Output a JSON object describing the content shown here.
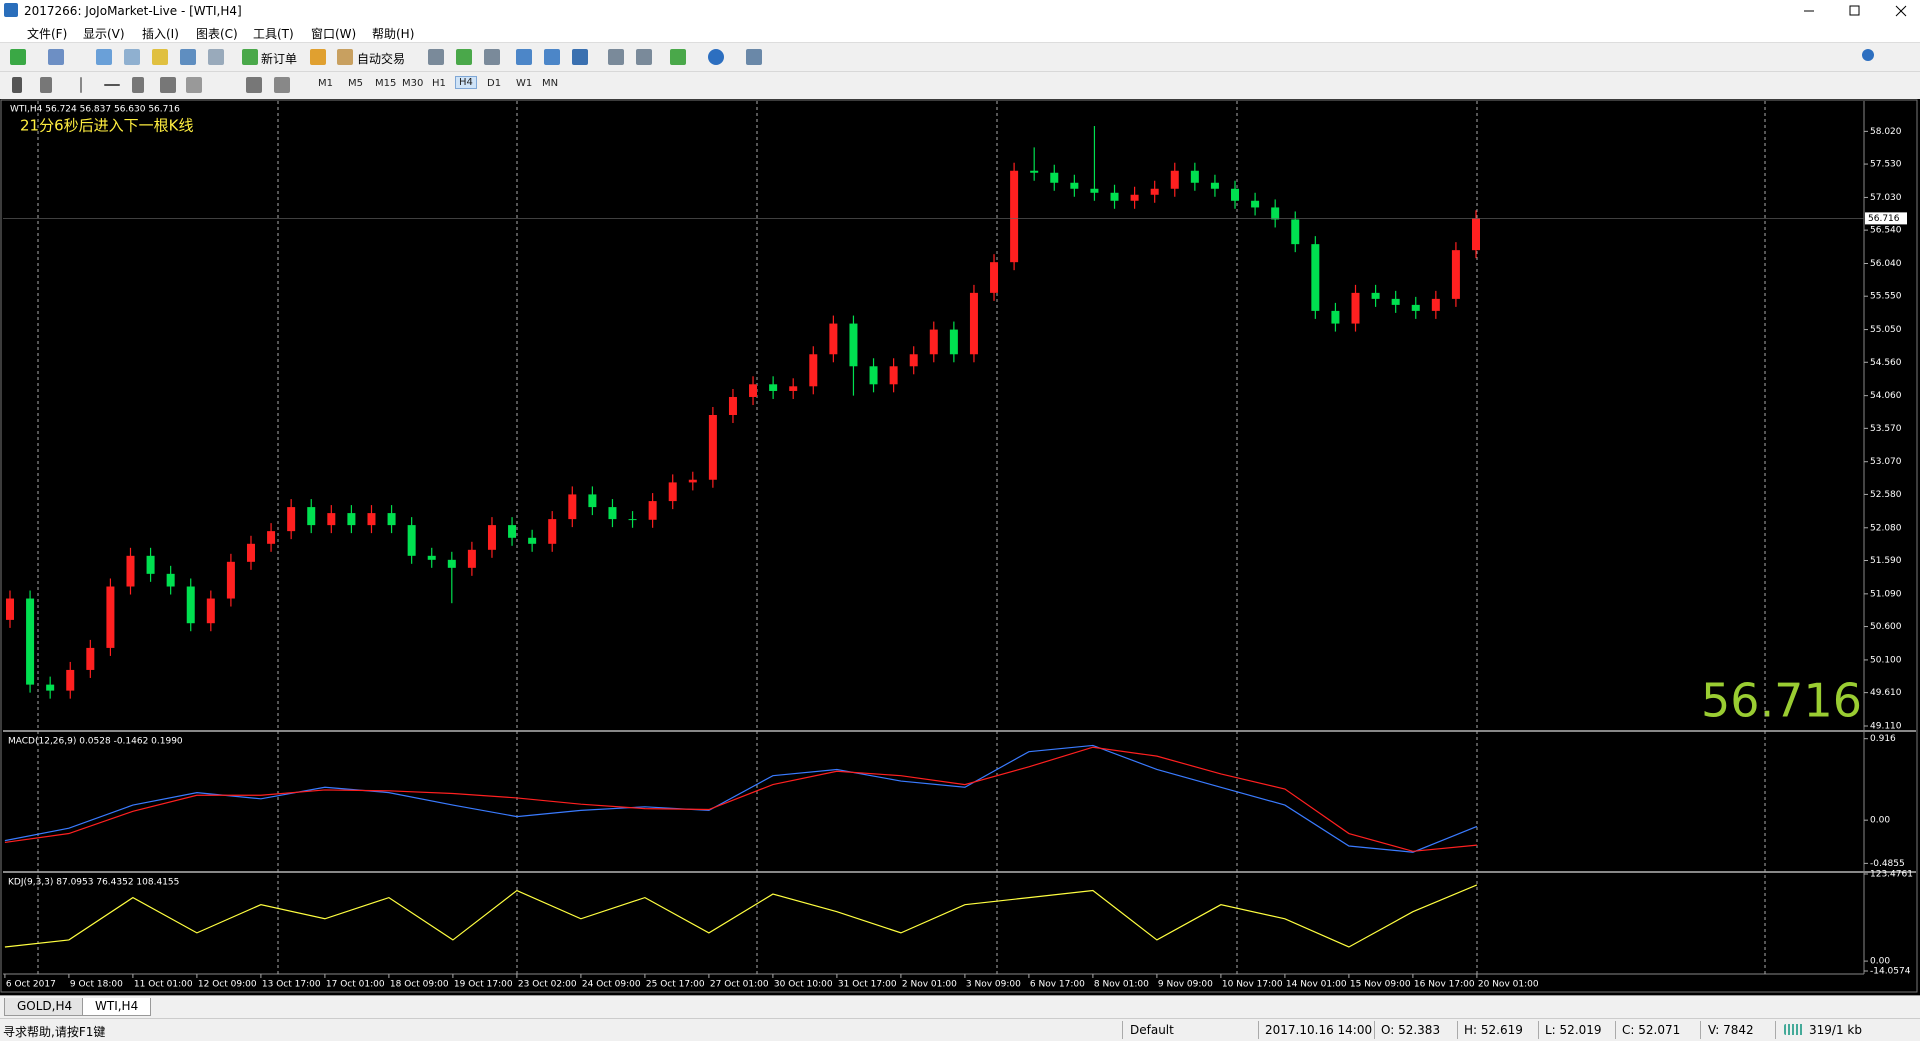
{
  "window": {
    "title": "2017266: JoJoMarket-Live - [WTI,H4]"
  },
  "menu": [
    "文件(F)",
    "显示(V)",
    "插入(I)",
    "图表(C)",
    "工具(T)",
    "窗口(W)",
    "帮助(H)"
  ],
  "toolbar": {
    "new_order": "新订单",
    "auto_trading": "自动交易",
    "timeframes": [
      "M1",
      "M5",
      "M15",
      "M30",
      "H1",
      "H4",
      "D1",
      "W1",
      "MN"
    ]
  },
  "chart": {
    "header": "WTI,H4  56.724 56.837 56.630 56.716",
    "countdown": "21分6秒后进入下一根K线",
    "last_price": 56.716,
    "up_color": "#ff2020",
    "down_color": "#00e050",
    "ylim": [
      49.05,
      58.46
    ],
    "yticks": [
      {
        "value": 58.02,
        "label": "58.020"
      },
      {
        "value": 57.53,
        "label": "57.530"
      },
      {
        "value": 57.03,
        "label": "57.030"
      },
      {
        "value": 56.54,
        "label": "56.540"
      },
      {
        "value": 56.04,
        "label": "56.040"
      },
      {
        "value": 55.55,
        "label": "55.550"
      },
      {
        "value": 55.05,
        "label": "55.050"
      },
      {
        "value": 54.56,
        "label": "54.560"
      },
      {
        "value": 54.06,
        "label": "54.060"
      },
      {
        "value": 53.57,
        "label": "53.570"
      },
      {
        "value": 53.07,
        "label": "53.070"
      },
      {
        "value": 52.58,
        "label": "52.580"
      },
      {
        "value": 52.08,
        "label": "52.080"
      },
      {
        "value": 51.59,
        "label": "51.590"
      },
      {
        "value": 51.09,
        "label": "51.090"
      },
      {
        "value": 50.6,
        "label": "50.600"
      },
      {
        "value": 50.1,
        "label": "50.100"
      },
      {
        "value": 49.61,
        "label": "49.610"
      },
      {
        "value": 49.11,
        "label": "49.110"
      }
    ],
    "candles": [
      [
        50.7,
        51.14,
        50.58,
        51.02
      ],
      [
        51.02,
        51.14,
        49.61,
        49.73
      ],
      [
        49.73,
        49.85,
        49.52,
        49.64
      ],
      [
        49.64,
        50.07,
        49.52,
        49.95
      ],
      [
        49.95,
        50.4,
        49.83,
        50.28
      ],
      [
        50.28,
        51.32,
        50.16,
        51.2
      ],
      [
        51.2,
        51.78,
        51.08,
        51.66
      ],
      [
        51.66,
        51.78,
        51.27,
        51.39
      ],
      [
        51.39,
        51.51,
        51.08,
        51.2
      ],
      [
        51.2,
        51.32,
        50.53,
        50.65
      ],
      [
        50.65,
        51.14,
        50.53,
        51.02
      ],
      [
        51.02,
        51.69,
        50.9,
        51.57
      ],
      [
        51.57,
        51.96,
        51.45,
        51.84
      ],
      [
        51.84,
        52.15,
        51.72,
        52.03
      ],
      [
        52.03,
        52.51,
        51.91,
        52.39
      ],
      [
        52.39,
        52.51,
        52.0,
        52.12
      ],
      [
        52.12,
        52.42,
        52.0,
        52.3
      ],
      [
        52.3,
        52.42,
        52.0,
        52.12
      ],
      [
        52.12,
        52.42,
        52.0,
        52.3
      ],
      [
        52.3,
        52.42,
        52.0,
        52.12
      ],
      [
        52.12,
        52.24,
        51.54,
        51.66
      ],
      [
        51.66,
        51.78,
        51.48,
        51.6
      ],
      [
        51.6,
        51.72,
        50.95,
        51.48
      ],
      [
        51.48,
        51.87,
        51.36,
        51.75
      ],
      [
        51.75,
        52.24,
        51.63,
        52.12
      ],
      [
        52.12,
        52.24,
        51.81,
        51.93
      ],
      [
        51.93,
        52.05,
        51.72,
        51.84
      ],
      [
        51.84,
        52.33,
        51.72,
        52.21
      ],
      [
        52.21,
        52.7,
        52.09,
        52.58
      ],
      [
        52.58,
        52.7,
        52.27,
        52.39
      ],
      [
        52.39,
        52.51,
        52.09,
        52.21
      ],
      [
        52.21,
        52.33,
        52.08,
        52.2
      ],
      [
        52.2,
        52.6,
        52.08,
        52.48
      ],
      [
        52.48,
        52.88,
        52.36,
        52.76
      ],
      [
        52.76,
        52.92,
        52.64,
        52.8
      ],
      [
        52.8,
        53.89,
        52.68,
        53.77
      ],
      [
        53.77,
        54.16,
        53.65,
        54.04
      ],
      [
        54.04,
        54.35,
        53.92,
        54.23
      ],
      [
        54.23,
        54.35,
        54.01,
        54.13
      ],
      [
        54.13,
        54.32,
        54.01,
        54.2
      ],
      [
        54.2,
        54.8,
        54.08,
        54.68
      ],
      [
        54.68,
        55.26,
        54.56,
        55.14
      ],
      [
        55.14,
        55.26,
        54.06,
        54.5
      ],
      [
        54.5,
        54.62,
        54.11,
        54.23
      ],
      [
        54.23,
        54.62,
        54.11,
        54.5
      ],
      [
        54.5,
        54.8,
        54.38,
        54.68
      ],
      [
        54.68,
        55.17,
        54.56,
        55.05
      ],
      [
        55.05,
        55.17,
        54.56,
        54.68
      ],
      [
        54.68,
        55.72,
        54.56,
        55.6
      ],
      [
        55.6,
        56.18,
        55.48,
        56.06
      ],
      [
        56.06,
        57.55,
        55.94,
        57.43
      ],
      [
        57.43,
        57.78,
        57.28,
        57.4
      ],
      [
        57.4,
        57.52,
        57.13,
        57.25
      ],
      [
        57.25,
        57.37,
        57.04,
        57.16
      ],
      [
        57.16,
        58.1,
        56.98,
        57.1
      ],
      [
        57.1,
        57.22,
        56.86,
        56.98
      ],
      [
        56.98,
        57.19,
        56.86,
        57.07
      ],
      [
        57.07,
        57.28,
        56.95,
        57.16
      ],
      [
        57.16,
        57.55,
        57.04,
        57.43
      ],
      [
        57.43,
        57.55,
        57.13,
        57.25
      ],
      [
        57.25,
        57.37,
        57.04,
        57.16
      ],
      [
        57.16,
        57.28,
        56.86,
        56.98
      ],
      [
        56.98,
        57.1,
        56.76,
        56.88
      ],
      [
        56.88,
        57.0,
        56.58,
        56.7
      ],
      [
        56.7,
        56.82,
        56.21,
        56.33
      ],
      [
        56.33,
        56.45,
        55.21,
        55.33
      ],
      [
        55.33,
        55.45,
        55.02,
        55.14
      ],
      [
        55.14,
        55.72,
        55.02,
        55.6
      ],
      [
        55.6,
        55.72,
        55.39,
        55.51
      ],
      [
        55.51,
        55.63,
        55.3,
        55.42
      ],
      [
        55.42,
        55.54,
        55.21,
        55.33
      ],
      [
        55.33,
        55.63,
        55.21,
        55.51
      ],
      [
        55.51,
        56.36,
        55.39,
        56.24
      ],
      [
        56.24,
        56.837,
        56.12,
        56.716
      ]
    ],
    "dates": [
      "6 Oct 2017",
      "9 Oct 18:00",
      "11 Oct 01:00",
      "12 Oct 09:00",
      "13 Oct 17:00",
      "17 Oct 01:00",
      "18 Oct 09:00",
      "19 Oct 17:00",
      "23 Oct 02:00",
      "24 Oct 09:00",
      "25 Oct 17:00",
      "27 Oct 01:00",
      "30 Oct 10:00",
      "31 Oct 17:00",
      "2 Nov 01:00",
      "3 Nov 09:00",
      "6 Nov 17:00",
      "8 Nov 01:00",
      "9 Nov 09:00",
      "10 Nov 17:00",
      "14 Nov 01:00",
      "15 Nov 09:00",
      "16 Nov 17:00",
      "20 Nov 01:00"
    ],
    "macd": {
      "label": "MACD(12,26,9) 0.0528 -0.1462 0.1990",
      "ylim": [
        -0.56,
        0.98
      ],
      "yticks": [
        0.916,
        {
          "value": 0,
          "label": "0.00"
        },
        -0.4855
      ],
      "main_color": "#3a7bff",
      "signal_color": "#ff2020",
      "main": [
        -0.23,
        -0.09,
        0.17,
        0.31,
        0.24,
        0.37,
        0.31,
        0.17,
        0.04,
        0.11,
        0.15,
        0.11,
        0.5,
        0.57,
        0.44,
        0.37,
        0.77,
        0.84,
        0.57,
        0.37,
        0.17,
        -0.29,
        -0.36,
        -0.07
      ],
      "signal": [
        -0.25,
        -0.15,
        0.1,
        0.28,
        0.28,
        0.34,
        0.33,
        0.3,
        0.25,
        0.18,
        0.13,
        0.12,
        0.4,
        0.55,
        0.5,
        0.4,
        0.6,
        0.82,
        0.72,
        0.52,
        0.35,
        -0.15,
        -0.35,
        -0.28
      ]
    },
    "kdj": {
      "label": "KDJ(9,3,3) 87.0953 76.4352 108.4155",
      "ylim": [
        -14.0574,
        123.4761
      ],
      "yticks": [
        123.4761,
        {
          "value": 0,
          "label": "0.00"
        },
        -14.0574
      ],
      "k_color": "#ffff40",
      "k": [
        20,
        30,
        90,
        40,
        80,
        60,
        90,
        30,
        100,
        60,
        90,
        40,
        95,
        70,
        40,
        80,
        90,
        100,
        30,
        80,
        60,
        20,
        70,
        108
      ]
    }
  },
  "tabs": [
    "GOLD,H4",
    "WTI,H4"
  ],
  "status": {
    "help": "寻求帮助,请按F1键",
    "profile": "Default",
    "time": "2017.10.16 14:00",
    "open": "O: 52.383",
    "high": "H: 52.619",
    "low": "L: 52.019",
    "close": "C: 52.071",
    "volume": "V: 7842",
    "traffic": "319/1 kb"
  }
}
